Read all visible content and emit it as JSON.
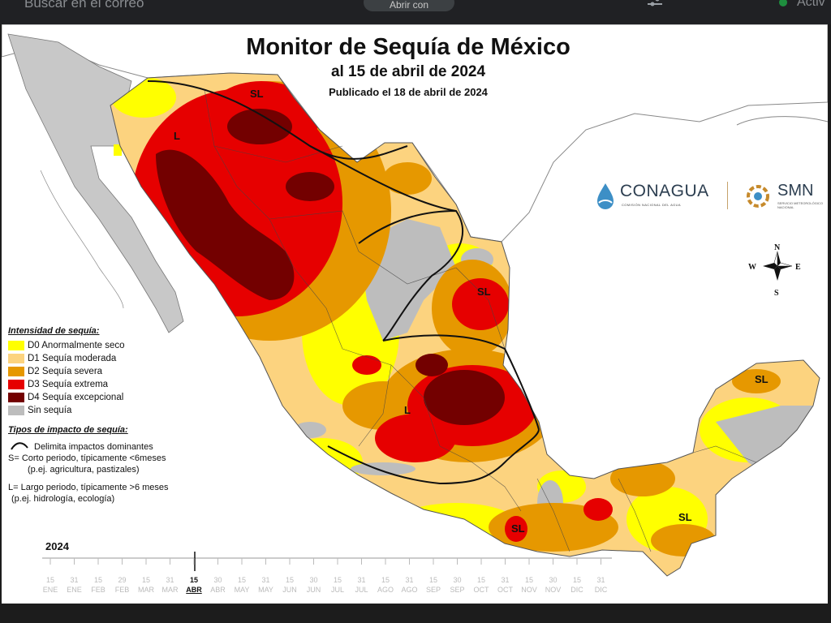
{
  "topbar": {
    "search_placeholder": "Buscar en el correo",
    "pill_label": "Abrir con",
    "status_label": "Activ",
    "icons": [
      "filter-icon",
      "status-dot-icon"
    ]
  },
  "map": {
    "title": "Monitor de Sequía de México",
    "subtitle": "al 15 de abril de 2024",
    "published": "Publicado el 18 de abril de 2024",
    "colors": {
      "land": "#ffffff",
      "water": "#ffffff",
      "baja": "#bdbdbd",
      "D0": "#ffff00",
      "D1": "#fcd37f",
      "D2": "#e69800",
      "D3": "#e60000",
      "D4": "#730000",
      "none": "#bdbdbd"
    },
    "region_labels": [
      "SL",
      "L",
      "SL",
      "L",
      "SL",
      "SL",
      "SL"
    ],
    "compass": {
      "n": "N",
      "s": "S",
      "e": "E",
      "w": "W"
    }
  },
  "logos": {
    "conagua": "CONAGUA",
    "conagua_sub": "COMISIÓN NACIONAL DEL AGUA",
    "smn": "SMN",
    "smn_sub": "SERVICIO METEOROLÓGICO NACIONAL"
  },
  "legend": {
    "heading": "Intensidad de sequía:",
    "items": [
      {
        "label": "D0 Anormalmente seco",
        "color": "#ffff00"
      },
      {
        "label": "D1 Sequía moderada",
        "color": "#fcd37f"
      },
      {
        "label": "D2 Sequía severa",
        "color": "#e69800"
      },
      {
        "label": "D3 Sequía extrema",
        "color": "#e60000"
      },
      {
        "label": "D4 Sequía excepcional",
        "color": "#730000"
      },
      {
        "label": "Sin sequía",
        "color": "#bdbdbd"
      }
    ]
  },
  "impact": {
    "heading": "Tipos de impacto de sequía:",
    "line_label": "Delimita impactos dominantes",
    "s_line1": "S= Corto periodo, típicamente <6meses",
    "s_line2": "(p.ej. agricultura, pastizales)",
    "l_line1": "L= Largo periodo, típicamente >6 meses",
    "l_line2": "(p.ej. hidrología, ecología)"
  },
  "timeline": {
    "year": "2024",
    "days": [
      "15",
      "31",
      "15",
      "29",
      "15",
      "31",
      "15",
      "30",
      "15",
      "31",
      "15",
      "30",
      "15",
      "31",
      "15",
      "31",
      "15",
      "30",
      "15",
      "31",
      "15",
      "30",
      "15",
      "31"
    ],
    "months": [
      "ENE",
      "ENE",
      "FEB",
      "FEB",
      "MAR",
      "MAR",
      "ABR",
      "ABR",
      "MAY",
      "MAY",
      "JUN",
      "JUN",
      "JUL",
      "JUL",
      "AGO",
      "AGO",
      "SEP",
      "SEP",
      "OCT",
      "OCT",
      "NOV",
      "NOV",
      "DIC",
      "DIC"
    ],
    "current_index": 6
  }
}
